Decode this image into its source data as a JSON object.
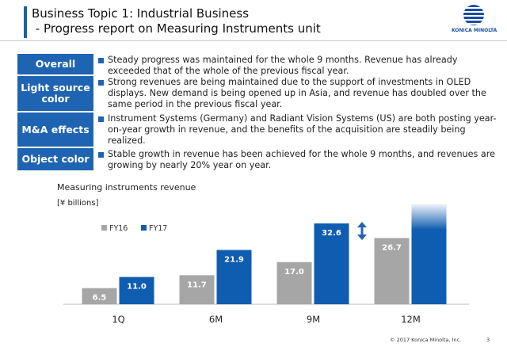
{
  "header": {
    "title_line1": "Business Topic 1: Industrial Business",
    "title_line2": " - Progress report on Measuring Instruments unit",
    "logo": "KONICA MINOLTA"
  },
  "table": {
    "rows": [
      [
        "Overall",
        "Steady progress was maintained for the whole 9 months. Revenue has already exceeded that of the whole of the previous fiscal year."
      ],
      [
        "Light source color",
        "Strong revenues are being maintained due to the support of investments in OLED displays. New demand is being opened up in Asia, and revenue has doubled over the same period in the previous fiscal year."
      ],
      [
        "M&A effects",
        "Instrument Systems (Germany) and Radiant Vision Systems (US) are both posting year-on-year growth in revenue, and the benefits of the acquisition are steadily being realized."
      ],
      [
        "Object color",
        "Stable growth in revenue has been achieved for the whole 9 months, and revenues are growing by nearly 20% year on year."
      ]
    ]
  },
  "chart_data": {
    "type": "bar",
    "title": "Measuring instruments revenue",
    "subtitle": "[¥ billions]",
    "categories": [
      "1Q",
      "6M",
      "9M",
      "12M"
    ],
    "series": [
      {
        "name": "FY16",
        "color": "#a6a6a6",
        "values": [
          6.5,
          11.7,
          17.0,
          26.7
        ],
        "value_labels": [
          "6.5",
          "11.7",
          "17.0",
          "26.7"
        ]
      },
      {
        "name": "FY17",
        "color": "#0f5db0",
        "values": [
          11.0,
          21.9,
          32.6,
          40
        ],
        "value_labels": [
          "11.0",
          "21.9",
          "32.6",
          null
        ]
      }
    ]
  },
  "footer": {
    "copyright": "© 2017 Konica Minolta, Inc.",
    "page": "3"
  }
}
